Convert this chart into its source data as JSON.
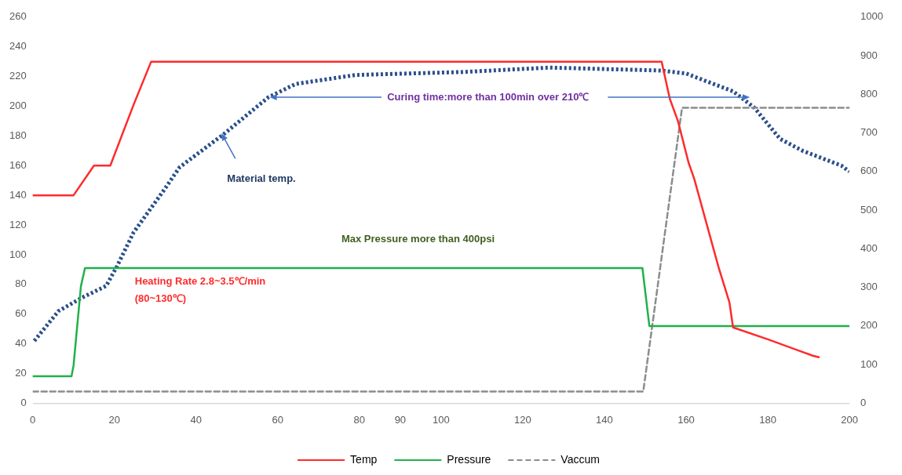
{
  "chart_data": {
    "type": "line",
    "xlim": [
      0,
      200
    ],
    "xticks": [
      0,
      20,
      40,
      60,
      80,
      90,
      100,
      120,
      140,
      160,
      180,
      200
    ],
    "ylim": [
      0,
      260
    ],
    "yticks": [
      0,
      20,
      40,
      60,
      80,
      100,
      120,
      140,
      160,
      180,
      200,
      220,
      240,
      260
    ],
    "y2lim": [
      0,
      1000
    ],
    "y2ticks": [
      0,
      100,
      200,
      300,
      400,
      500,
      600,
      700,
      800,
      900,
      1000
    ],
    "grid": false,
    "legend": "bottom",
    "marker": "none",
    "series": [
      {
        "name": "Temp",
        "color": "#ff2b2b",
        "line_style": "solid",
        "x": [
          0,
          10,
          15,
          19,
          24.7,
          29,
          154,
          156,
          158,
          160.6,
          162,
          164.8,
          165.8,
          168,
          170.6,
          171.5,
          180,
          191,
          192.5
        ],
        "values": [
          140,
          140,
          160,
          160,
          201,
          230,
          230,
          205,
          190,
          162,
          151,
          123,
          113,
          91,
          68,
          51,
          43,
          32,
          31
        ]
      },
      {
        "name": "Pressure",
        "color": "#22b04b",
        "axis": "y2",
        "line_style": "solid",
        "x": [
          0,
          9.5,
          10,
          11.8,
          12.8,
          149.3,
          151,
          200
        ],
        "values": [
          70,
          70,
          98,
          303,
          350,
          350,
          200,
          200
        ]
      },
      {
        "name": "Vaccum",
        "color": "#8c8c8c",
        "axis": "y2",
        "line_style": "dashed",
        "x": [
          0,
          149.5,
          159,
          200
        ],
        "values": [
          30,
          30,
          765,
          765
        ]
      },
      {
        "color": "#2a4f8a",
        "line_style": "dotted",
        "x": [
          0.4,
          6.3,
          12,
          18,
          20.6,
          24.7,
          32,
          36,
          46.7,
          57.7,
          64.4,
          79,
          105,
          126.6,
          154,
          160,
          171.5,
          176.7,
          183,
          188.5,
          198,
          200
        ],
        "values": [
          42,
          62,
          71,
          79,
          92,
          115,
          143,
          159,
          181,
          206,
          215,
          221,
          223,
          226,
          224,
          222,
          210,
          199,
          178,
          170,
          160,
          156
        ]
      }
    ],
    "annotations": [
      {
        "text": "Curing time:more than 100min over 210℃",
        "x": 58,
        "y": 206
      },
      "Material temp.",
      "Max Pressure more than 400psi",
      "Heating Rate 2.8~3.5℃/min\n(80~130℃)"
    ]
  }
}
